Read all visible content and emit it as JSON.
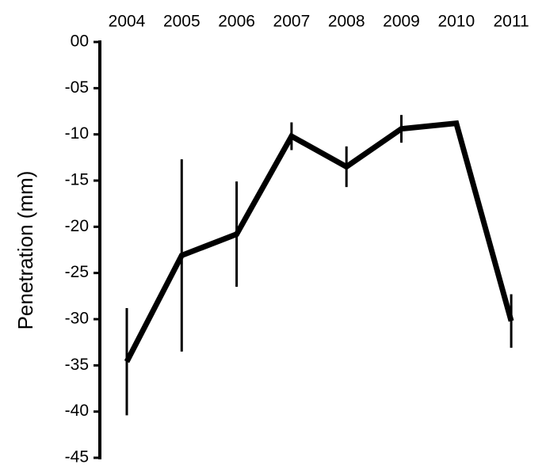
{
  "chart_data": {
    "type": "line",
    "y_label": "Penetration (mm)",
    "categories": [
      "2004",
      "2005",
      "2006",
      "2007",
      "2008",
      "2009",
      "2010",
      "2011"
    ],
    "values": [
      -34.6,
      -23.1,
      -20.8,
      -10.2,
      -13.5,
      -9.4,
      -8.8,
      -30.2
    ],
    "errors": [
      5.8,
      10.4,
      5.7,
      1.5,
      2.2,
      1.5,
      0.2,
      2.9
    ],
    "color": "#000000",
    "ylim": [
      -45,
      0
    ],
    "yticks": [
      {
        "value": 0,
        "label": "00"
      },
      {
        "value": -5,
        "label": "-05"
      },
      -10,
      -15,
      -20,
      -25,
      -30,
      -35,
      -40,
      -45
    ]
  }
}
